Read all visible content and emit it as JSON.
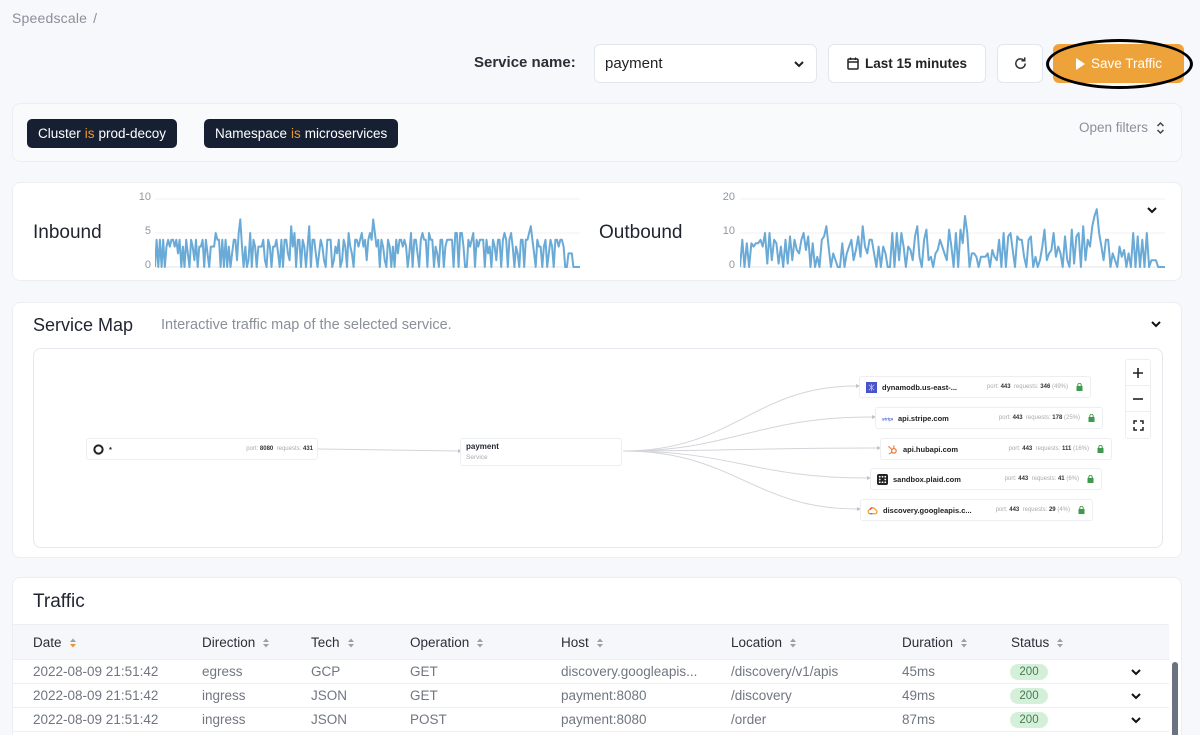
{
  "breadcrumb": {
    "root": "Speedscale",
    "separator": "/"
  },
  "toolbar": {
    "service_label": "Service name:",
    "service_value": "payment",
    "time_range": "Last 15 minutes",
    "refresh_icon": "refresh-icon",
    "save_label": "Save Traffic",
    "save_color": "#eea33a"
  },
  "filters": {
    "chips": [
      {
        "key": "Cluster",
        "op": "is",
        "value": "prod-decoy"
      },
      {
        "key": "Namespace",
        "op": "is",
        "value": "microservices"
      }
    ],
    "open_label": "Open filters"
  },
  "charts": {
    "inbound": {
      "title": "Inbound",
      "y_ticks": [
        "10",
        "5",
        "0"
      ]
    },
    "outbound": {
      "title": "Outbound",
      "y_ticks": [
        "20",
        "10",
        "0"
      ]
    }
  },
  "chart_data": [
    {
      "type": "line",
      "title": "Inbound",
      "ylim": [
        0,
        10
      ],
      "y_ticks": [
        0,
        5,
        10
      ],
      "grid": true,
      "color": "#6aaad6",
      "values": [
        0,
        4,
        0,
        4,
        0,
        4,
        0,
        3,
        4,
        3,
        4,
        4,
        3,
        4,
        2,
        4,
        0,
        3,
        0,
        4,
        2,
        0,
        4,
        3,
        1,
        4,
        0,
        3,
        3,
        4,
        0,
        4,
        2,
        0,
        3,
        3,
        3,
        5,
        4,
        4,
        0,
        4,
        0,
        4,
        0,
        3,
        0,
        2,
        4,
        4,
        1,
        5,
        7,
        3,
        0,
        3,
        0,
        1,
        5,
        0,
        4,
        3,
        0,
        3,
        3,
        3,
        4,
        1,
        0,
        4,
        3,
        0,
        3,
        3,
        4,
        2,
        0,
        4,
        0,
        4,
        4,
        2,
        1,
        6,
        3,
        5,
        0,
        4,
        4,
        0,
        4,
        3,
        0,
        3,
        6,
        0,
        4,
        4,
        2,
        0,
        2,
        4,
        3,
        1,
        0,
        4,
        4,
        4,
        0,
        1,
        3,
        2,
        4,
        0,
        1,
        4,
        3,
        0,
        5,
        3,
        2,
        0,
        4,
        4,
        3,
        4,
        5,
        3,
        4,
        1,
        4,
        5,
        4,
        7,
        5,
        3,
        4,
        0,
        4,
        3,
        1,
        0,
        4,
        3,
        0,
        3,
        0,
        4,
        2,
        4,
        4,
        3,
        4,
        3,
        0,
        2,
        5,
        0,
        4,
        4,
        2,
        0,
        4,
        5,
        4,
        4,
        0,
        5,
        4,
        4,
        0,
        3,
        2,
        0,
        4,
        4,
        0,
        3,
        4,
        4,
        4,
        4,
        0,
        5,
        5,
        0,
        5,
        5,
        3,
        0,
        0,
        4,
        3,
        4,
        5,
        0,
        4,
        3,
        4,
        4,
        4,
        0,
        4,
        2,
        3,
        0,
        4,
        3,
        1,
        4,
        4,
        0,
        4,
        5,
        4,
        0,
        4,
        5,
        3,
        0,
        3,
        2,
        0,
        4,
        4,
        0,
        4,
        4,
        5,
        6,
        4,
        2,
        0,
        4,
        3,
        3,
        0,
        3,
        4,
        0,
        2,
        4,
        3,
        0,
        4,
        4,
        3,
        4,
        4,
        3,
        0,
        0,
        2,
        2,
        2,
        0,
        0,
        0,
        0,
        0
      ]
    },
    {
      "type": "line",
      "title": "Outbound",
      "ylim": [
        0,
        20
      ],
      "y_ticks": [
        0,
        10,
        20
      ],
      "grid": true,
      "color": "#6aaad6",
      "values": [
        0,
        8,
        0,
        7,
        0,
        7,
        6,
        7,
        7,
        8,
        6,
        10,
        1,
        10,
        2,
        8,
        7,
        1,
        6,
        0,
        8,
        1,
        9,
        2,
        8,
        5,
        4,
        8,
        10,
        5,
        9,
        0,
        7,
        0,
        3,
        0,
        8,
        9,
        12,
        6,
        0,
        4,
        2,
        0,
        0,
        7,
        0,
        4,
        6,
        8,
        2,
        5,
        9,
        3,
        12,
        6,
        4,
        8,
        8,
        4,
        0,
        6,
        0,
        6,
        4,
        0,
        0,
        10,
        0,
        10,
        2,
        10,
        6,
        0,
        6,
        5,
        2,
        9,
        12,
        3,
        0,
        8,
        11,
        2,
        3,
        0,
        4,
        5,
        8,
        6,
        4,
        2,
        11,
        6,
        0,
        10,
        0,
        11,
        7,
        15,
        10,
        0,
        4,
        4,
        3,
        0,
        3,
        3,
        3,
        4,
        0,
        5,
        3,
        2,
        8,
        0,
        10,
        0,
        9,
        10,
        5,
        0,
        9,
        8,
        8,
        3,
        0,
        8,
        9,
        0,
        3,
        0,
        2,
        6,
        11,
        2,
        4,
        5,
        10,
        3,
        6,
        4,
        0,
        9,
        2,
        0,
        11,
        1,
        9,
        10,
        0,
        12,
        2,
        8,
        6,
        12,
        15,
        17,
        10,
        6,
        2,
        8,
        8,
        0,
        4,
        2,
        0,
        6,
        3,
        5,
        0,
        4,
        0,
        10,
        0,
        9,
        0,
        8,
        0,
        10,
        0,
        2,
        2,
        2,
        0,
        0,
        0,
        0
      ]
    }
  ],
  "service_map": {
    "title": "Service Map",
    "subtitle": "Interactive traffic map of the selected service.",
    "inbound_node": {
      "name": "*",
      "port_label": "port:",
      "port": "8080",
      "requests_label": "requests:",
      "requests": "431"
    },
    "service_node": {
      "name": "payment",
      "type": "Service"
    },
    "outbound_nodes": [
      {
        "name": "dynamodb.us-east-...",
        "icon": "dynamodb-icon",
        "port": "443",
        "requests": "346",
        "pct": "(49%)"
      },
      {
        "name": "api.stripe.com",
        "icon": "stripe-icon",
        "port": "443",
        "requests": "178",
        "pct": "(25%)"
      },
      {
        "name": "api.hubapi.com",
        "icon": "hubspot-icon",
        "port": "443",
        "requests": "111",
        "pct": "(16%)"
      },
      {
        "name": "sandbox.plaid.com",
        "icon": "plaid-icon",
        "port": "443",
        "requests": "41",
        "pct": "(6%)"
      },
      {
        "name": "discovery.googleapis.c...",
        "icon": "google-cloud-icon",
        "port": "443",
        "requests": "29",
        "pct": "(4%)"
      }
    ],
    "port_label": "port:",
    "requests_label": "requests:",
    "zoom_in": "+",
    "zoom_out": "−"
  },
  "traffic": {
    "title": "Traffic",
    "columns": [
      "Date",
      "Direction",
      "Tech",
      "Operation",
      "Host",
      "Location",
      "Duration",
      "Status"
    ],
    "rows": [
      {
        "date": "2022-08-09 21:51:42",
        "direction": "egress",
        "tech": "GCP",
        "operation": "GET",
        "host": "discovery.googleapis...",
        "location": "/discovery/v1/apis",
        "duration": "45ms",
        "status": "200"
      },
      {
        "date": "2022-08-09 21:51:42",
        "direction": "ingress",
        "tech": "JSON",
        "operation": "GET",
        "host": "payment:8080",
        "location": "/discovery",
        "duration": "49ms",
        "status": "200"
      },
      {
        "date": "2022-08-09 21:51:42",
        "direction": "ingress",
        "tech": "JSON",
        "operation": "POST",
        "host": "payment:8080",
        "location": "/order",
        "duration": "87ms",
        "status": "200"
      }
    ]
  }
}
